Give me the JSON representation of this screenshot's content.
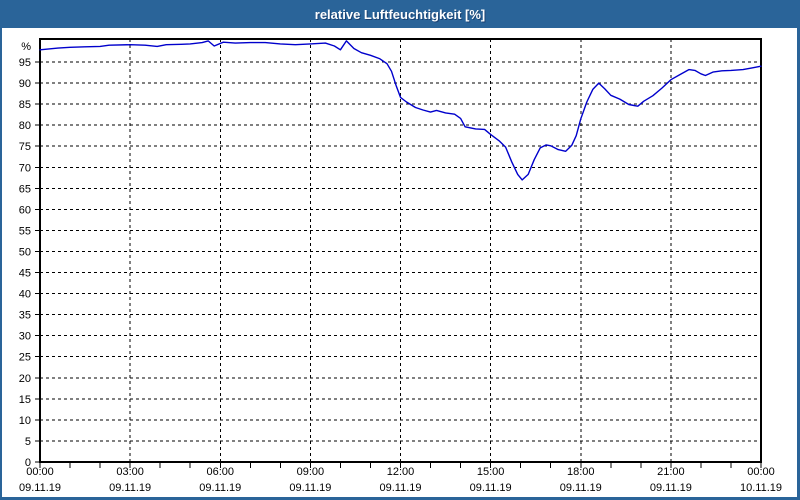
{
  "window": {
    "title": "relative Luftfeuchtigkeit [%]",
    "titlebar_color": "#2a6499",
    "border_color": "#2a6499",
    "background_color": "#ffffff"
  },
  "chart_data": {
    "type": "line",
    "title": "relative Luftfeuchtigkeit [%]",
    "ylabel": "%",
    "xlabel": "",
    "ylim": [
      0,
      100.5
    ],
    "xlim_hours": [
      0,
      24
    ],
    "grid": {
      "style": "dashed",
      "color": "#000000",
      "every_percent": 5,
      "every_hours": 3
    },
    "axis_color": "#000000",
    "line_color": "#0000cc",
    "y_ticks": [
      0,
      5,
      10,
      15,
      20,
      25,
      30,
      35,
      40,
      45,
      50,
      55,
      60,
      65,
      70,
      75,
      80,
      85,
      90,
      95
    ],
    "y_unit_label": "%",
    "x_minor_tick_every_hours": 1,
    "x_major_ticks": [
      {
        "hours": 0,
        "time": "00:00",
        "date": "09.11.19"
      },
      {
        "hours": 3,
        "time": "03:00",
        "date": "09.11.19"
      },
      {
        "hours": 6,
        "time": "06:00",
        "date": "09.11.19"
      },
      {
        "hours": 9,
        "time": "09:00",
        "date": "09.11.19"
      },
      {
        "hours": 12,
        "time": "12:00",
        "date": "09.11.19"
      },
      {
        "hours": 15,
        "time": "15:00",
        "date": "09.11.19"
      },
      {
        "hours": 18,
        "time": "18:00",
        "date": "09.11.19"
      },
      {
        "hours": 21,
        "time": "21:00",
        "date": "09.11.19"
      },
      {
        "hours": 24,
        "time": "00:00",
        "date": "10.11.19"
      }
    ],
    "series": [
      {
        "name": "relative Luftfeuchtigkeit",
        "points_hours_percent": [
          [
            0,
            97.9
          ],
          [
            0.3,
            98.1
          ],
          [
            0.6,
            98.3
          ],
          [
            1,
            98.5
          ],
          [
            1.5,
            98.6
          ],
          [
            2,
            98.7
          ],
          [
            2.3,
            99
          ],
          [
            3,
            99.1
          ],
          [
            3.5,
            99
          ],
          [
            3.9,
            98.7
          ],
          [
            4.2,
            99.1
          ],
          [
            4.7,
            99.2
          ],
          [
            5,
            99.3
          ],
          [
            5.4,
            99.6
          ],
          [
            5.6,
            100
          ],
          [
            5.8,
            98.8
          ],
          [
            6.1,
            99.7
          ],
          [
            6.5,
            99.5
          ],
          [
            7,
            99.6
          ],
          [
            7.5,
            99.6
          ],
          [
            8,
            99.3
          ],
          [
            8.5,
            99.1
          ],
          [
            9,
            99.3
          ],
          [
            9.5,
            99.5
          ],
          [
            9.8,
            98.8
          ],
          [
            10,
            97.9
          ],
          [
            10.2,
            100
          ],
          [
            10.45,
            98.2
          ],
          [
            10.7,
            97.2
          ],
          [
            11,
            96.6
          ],
          [
            11.3,
            95.8
          ],
          [
            11.55,
            94.6
          ],
          [
            11.7,
            92.8
          ],
          [
            11.85,
            89.5
          ],
          [
            12,
            86.6
          ],
          [
            12.2,
            85.5
          ],
          [
            12.5,
            84.2
          ],
          [
            12.75,
            83.6
          ],
          [
            13,
            83.1
          ],
          [
            13.2,
            83.5
          ],
          [
            13.5,
            82.9
          ],
          [
            13.8,
            82.6
          ],
          [
            14,
            81.6
          ],
          [
            14.15,
            79.6
          ],
          [
            14.5,
            79.1
          ],
          [
            14.8,
            79
          ],
          [
            15,
            77.8
          ],
          [
            15.3,
            76.2
          ],
          [
            15.5,
            74.8
          ],
          [
            15.7,
            71.3
          ],
          [
            15.9,
            68.3
          ],
          [
            16.05,
            67
          ],
          [
            16.25,
            68.3
          ],
          [
            16.45,
            71.8
          ],
          [
            16.65,
            74.6
          ],
          [
            16.85,
            75.3
          ],
          [
            17,
            75.1
          ],
          [
            17.25,
            74.2
          ],
          [
            17.5,
            73.8
          ],
          [
            17.7,
            75.2
          ],
          [
            17.85,
            77.5
          ],
          [
            18,
            81.5
          ],
          [
            18.2,
            85.5
          ],
          [
            18.4,
            88.5
          ],
          [
            18.6,
            90
          ],
          [
            18.8,
            88.6
          ],
          [
            19,
            87.1
          ],
          [
            19.3,
            86.2
          ],
          [
            19.6,
            84.9
          ],
          [
            19.9,
            84.5
          ],
          [
            20.1,
            85.7
          ],
          [
            20.4,
            87
          ],
          [
            20.7,
            88.8
          ],
          [
            21,
            90.8
          ],
          [
            21.3,
            92
          ],
          [
            21.6,
            93.2
          ],
          [
            21.8,
            93
          ],
          [
            22,
            92.2
          ],
          [
            22.15,
            91.8
          ],
          [
            22.4,
            92.6
          ],
          [
            22.7,
            92.9
          ],
          [
            23,
            93
          ],
          [
            23.4,
            93.2
          ],
          [
            23.7,
            93.6
          ],
          [
            24,
            94
          ]
        ]
      }
    ]
  }
}
